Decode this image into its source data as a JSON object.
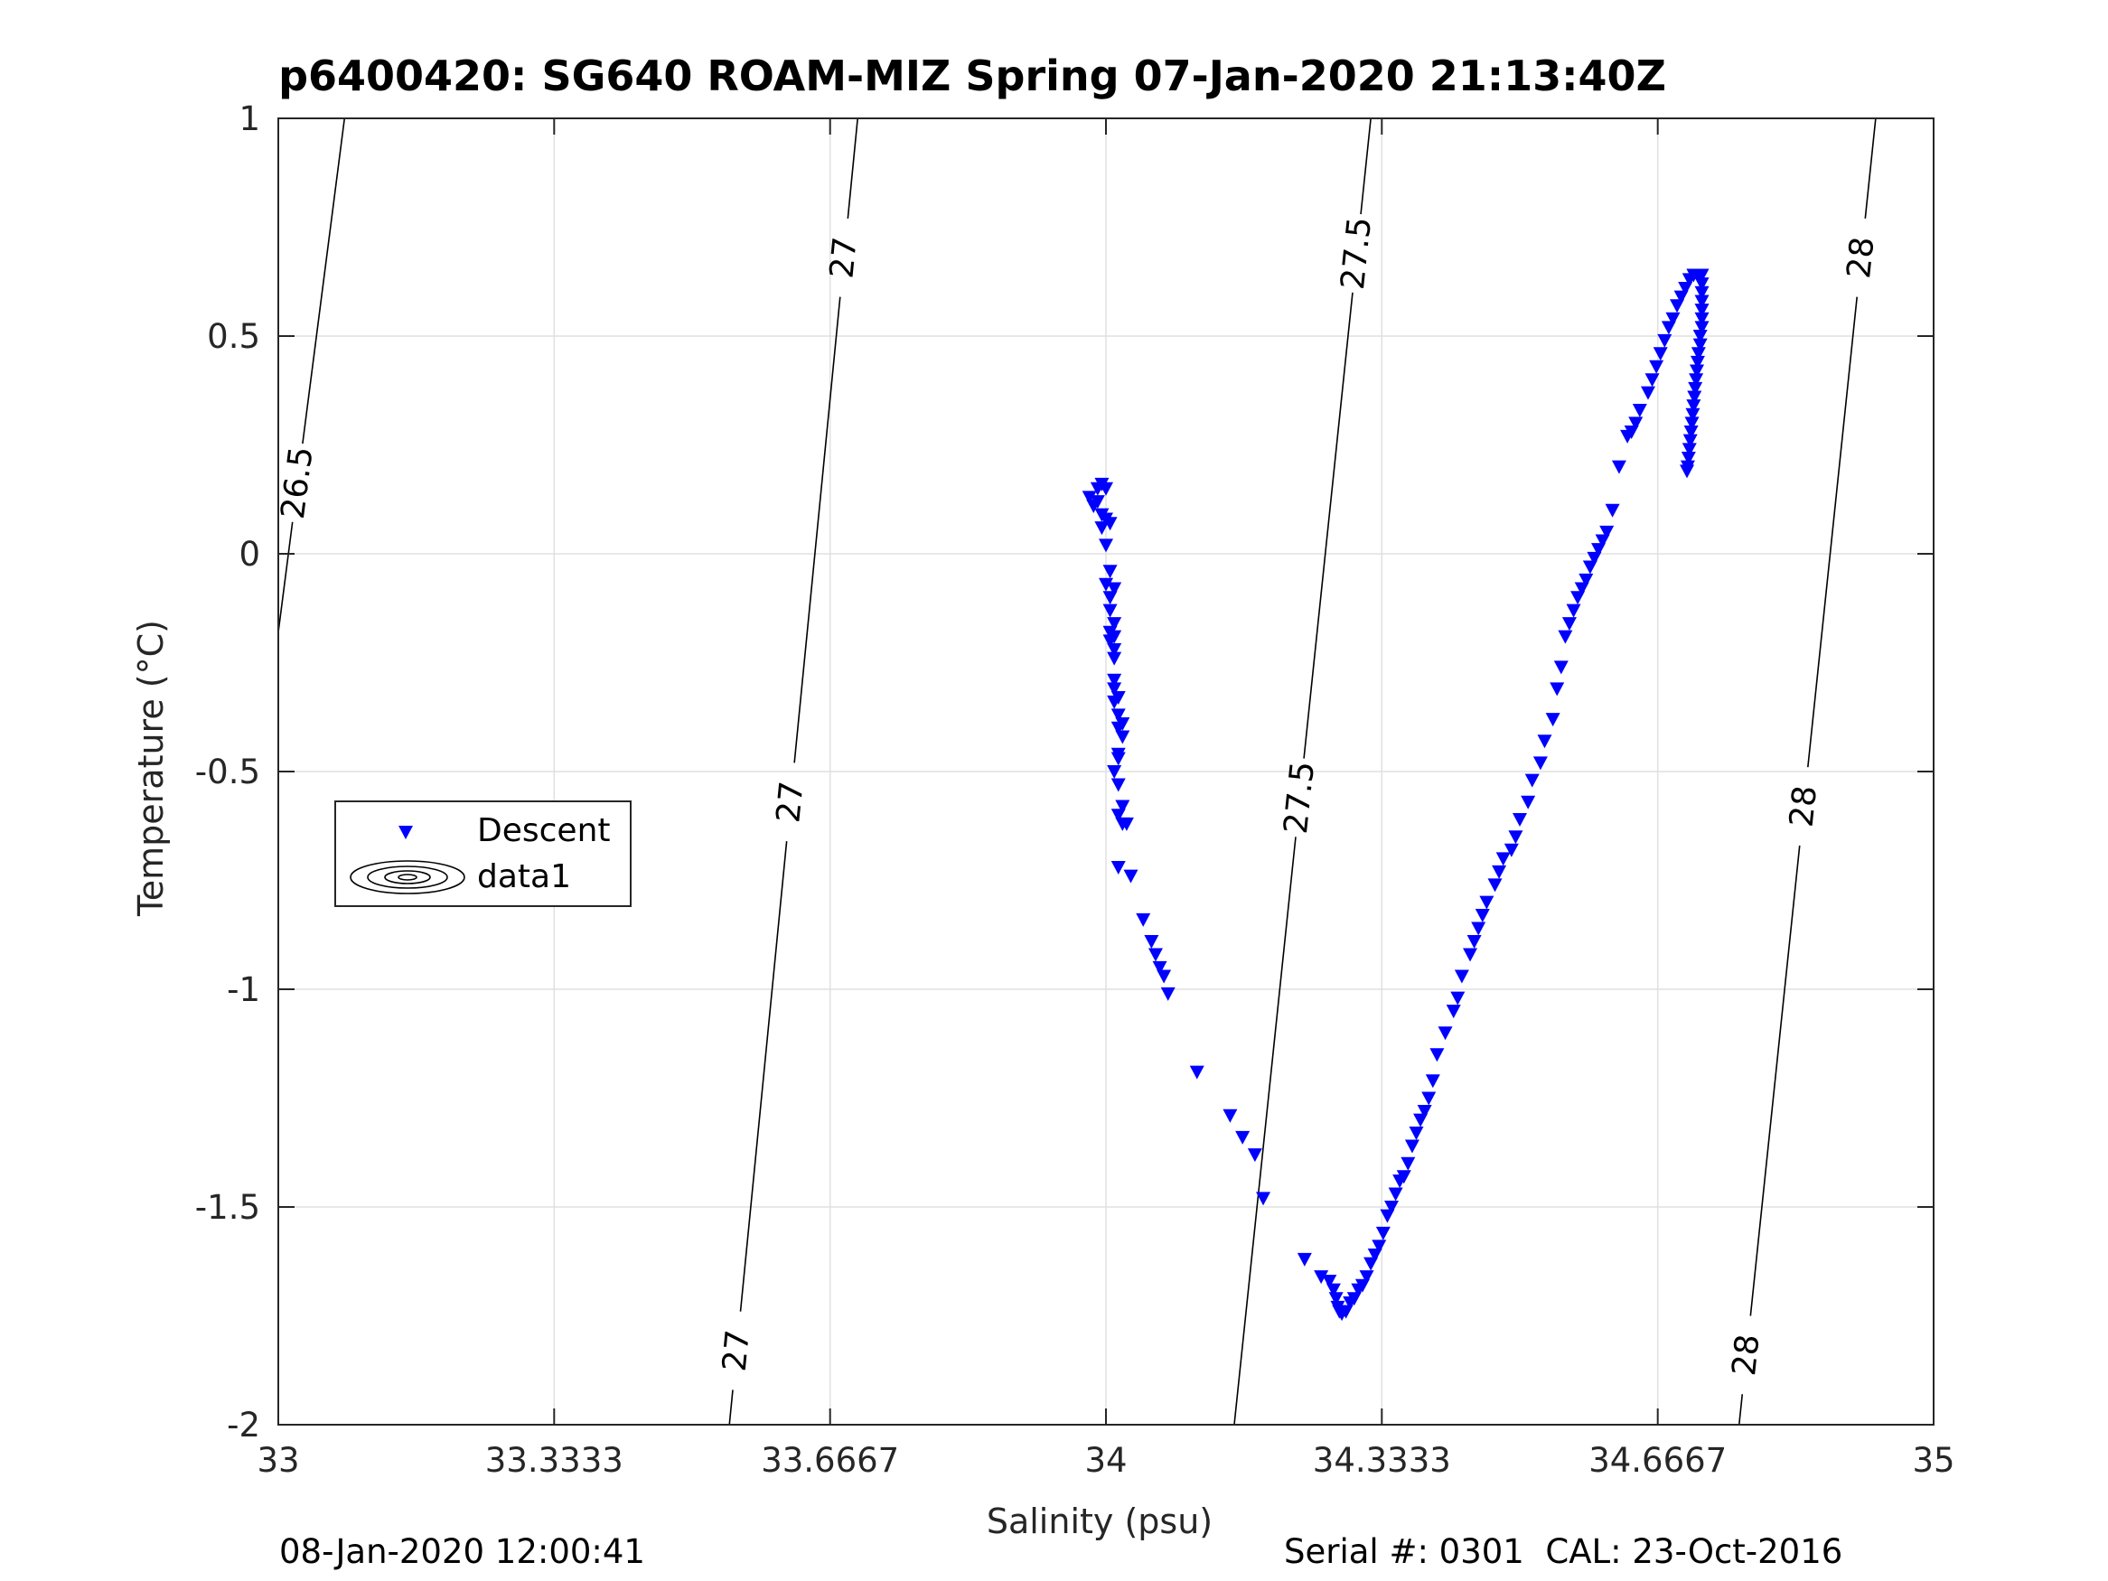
{
  "chart_data": {
    "type": "scatter",
    "title": "p6400420: SG640 ROAM-MIZ Spring 07-Jan-2020 21:13:40Z",
    "xlabel": "Salinity (psu)",
    "ylabel": "Temperature (°C)",
    "xlim": [
      33,
      35
    ],
    "ylim": [
      -2,
      1
    ],
    "x_ticks": [
      33,
      33.3333,
      33.6667,
      34,
      34.3333,
      34.6667,
      35
    ],
    "x_tick_labels": [
      "33",
      "33.3333",
      "33.6667",
      "34",
      "34.3333",
      "34.6667",
      "35"
    ],
    "y_ticks": [
      1,
      0.5,
      0,
      -0.5,
      -1,
      -1.5,
      -2
    ],
    "y_tick_labels": [
      "1",
      "0.5",
      "0",
      "-0.5",
      "-1",
      "-1.5",
      "-2"
    ],
    "grid": true,
    "legend": {
      "placement": "west",
      "entries": [
        "Descent",
        "data1"
      ]
    },
    "colors": {
      "descent": "#0000ff",
      "contour": "#000000",
      "grid": "#e0e0e0"
    },
    "series": [
      {
        "name": "Descent",
        "marker": "triangle-down",
        "points": [
          [
            33.98,
            0.13
          ],
          [
            33.985,
            0.11
          ],
          [
            33.99,
            0.12
          ],
          [
            33.995,
            0.09
          ],
          [
            33.99,
            0.15
          ],
          [
            33.995,
            0.16
          ],
          [
            34.0,
            0.15
          ],
          [
            34.0,
            0.08
          ],
          [
            34.005,
            0.07
          ],
          [
            33.995,
            0.06
          ],
          [
            34.0,
            0.02
          ],
          [
            34.005,
            -0.04
          ],
          [
            34.0,
            -0.07
          ],
          [
            34.01,
            -0.08
          ],
          [
            34.005,
            -0.1
          ],
          [
            34.005,
            -0.13
          ],
          [
            34.01,
            -0.16
          ],
          [
            34.005,
            -0.18
          ],
          [
            34.01,
            -0.19
          ],
          [
            34.005,
            -0.2
          ],
          [
            34.01,
            -0.22
          ],
          [
            34.01,
            -0.24
          ],
          [
            34.01,
            -0.29
          ],
          [
            34.01,
            -0.31
          ],
          [
            34.015,
            -0.33
          ],
          [
            34.01,
            -0.34
          ],
          [
            34.015,
            -0.37
          ],
          [
            34.02,
            -0.39
          ],
          [
            34.015,
            -0.4
          ],
          [
            34.02,
            -0.42
          ],
          [
            34.015,
            -0.46
          ],
          [
            34.015,
            -0.47
          ],
          [
            34.01,
            -0.5
          ],
          [
            34.015,
            -0.53
          ],
          [
            34.02,
            -0.58
          ],
          [
            34.015,
            -0.6
          ],
          [
            34.02,
            -0.62
          ],
          [
            34.025,
            -0.62
          ],
          [
            34.015,
            -0.72
          ],
          [
            34.03,
            -0.74
          ],
          [
            34.045,
            -0.84
          ],
          [
            34.055,
            -0.89
          ],
          [
            34.06,
            -0.92
          ],
          [
            34.065,
            -0.95
          ],
          [
            34.07,
            -0.97
          ],
          [
            34.075,
            -1.01
          ],
          [
            34.11,
            -1.19
          ],
          [
            34.15,
            -1.29
          ],
          [
            34.165,
            -1.34
          ],
          [
            34.18,
            -1.38
          ],
          [
            34.19,
            -1.48
          ],
          [
            34.24,
            -1.62
          ],
          [
            34.26,
            -1.66
          ],
          [
            34.27,
            -1.67
          ],
          [
            34.275,
            -1.69
          ],
          [
            34.278,
            -1.71
          ],
          [
            34.28,
            -1.73
          ],
          [
            34.282,
            -1.74
          ],
          [
            34.285,
            -1.745
          ],
          [
            34.29,
            -1.74
          ],
          [
            34.295,
            -1.72
          ],
          [
            34.3,
            -1.71
          ],
          [
            34.305,
            -1.69
          ],
          [
            34.31,
            -1.68
          ],
          [
            34.315,
            -1.66
          ],
          [
            34.32,
            -1.63
          ],
          [
            34.325,
            -1.61
          ],
          [
            34.33,
            -1.59
          ],
          [
            34.335,
            -1.56
          ],
          [
            34.34,
            -1.52
          ],
          [
            34.345,
            -1.5
          ],
          [
            34.35,
            -1.47
          ],
          [
            34.355,
            -1.44
          ],
          [
            34.36,
            -1.43
          ],
          [
            34.365,
            -1.4
          ],
          [
            34.37,
            -1.36
          ],
          [
            34.375,
            -1.33
          ],
          [
            34.38,
            -1.3
          ],
          [
            34.385,
            -1.28
          ],
          [
            34.39,
            -1.25
          ],
          [
            34.395,
            -1.21
          ],
          [
            34.4,
            -1.15
          ],
          [
            34.41,
            -1.1
          ],
          [
            34.42,
            -1.05
          ],
          [
            34.425,
            -1.02
          ],
          [
            34.43,
            -0.97
          ],
          [
            34.44,
            -0.92
          ],
          [
            34.445,
            -0.89
          ],
          [
            34.45,
            -0.86
          ],
          [
            34.455,
            -0.83
          ],
          [
            34.46,
            -0.8
          ],
          [
            34.47,
            -0.76
          ],
          [
            34.475,
            -0.73
          ],
          [
            34.48,
            -0.7
          ],
          [
            34.49,
            -0.68
          ],
          [
            34.495,
            -0.65
          ],
          [
            34.5,
            -0.61
          ],
          [
            34.51,
            -0.57
          ],
          [
            34.515,
            -0.52
          ],
          [
            34.525,
            -0.48
          ],
          [
            34.53,
            -0.43
          ],
          [
            34.54,
            -0.38
          ],
          [
            34.545,
            -0.31
          ],
          [
            34.55,
            -0.26
          ],
          [
            34.555,
            -0.19
          ],
          [
            34.56,
            -0.16
          ],
          [
            34.565,
            -0.13
          ],
          [
            34.57,
            -0.1
          ],
          [
            34.575,
            -0.08
          ],
          [
            34.58,
            -0.06
          ],
          [
            34.585,
            -0.03
          ],
          [
            34.59,
            -0.01
          ],
          [
            34.595,
            0.01
          ],
          [
            34.6,
            0.03
          ],
          [
            34.605,
            0.05
          ],
          [
            34.612,
            0.1
          ],
          [
            34.62,
            0.2
          ],
          [
            34.63,
            0.27
          ],
          [
            34.635,
            0.28
          ],
          [
            34.64,
            0.3
          ],
          [
            34.645,
            0.33
          ],
          [
            34.655,
            0.37
          ],
          [
            34.66,
            0.4
          ],
          [
            34.665,
            0.43
          ],
          [
            34.67,
            0.46
          ],
          [
            34.675,
            0.49
          ],
          [
            34.68,
            0.52
          ],
          [
            34.685,
            0.54
          ],
          [
            34.69,
            0.57
          ],
          [
            34.695,
            0.59
          ],
          [
            34.7,
            0.61
          ],
          [
            34.705,
            0.63
          ],
          [
            34.71,
            0.64
          ],
          [
            34.715,
            0.64
          ],
          [
            34.72,
            0.64
          ],
          [
            34.72,
            0.62
          ],
          [
            34.72,
            0.6
          ],
          [
            34.72,
            0.58
          ],
          [
            34.72,
            0.56
          ],
          [
            34.72,
            0.54
          ],
          [
            34.72,
            0.52
          ],
          [
            34.718,
            0.5
          ],
          [
            34.718,
            0.48
          ],
          [
            34.716,
            0.46
          ],
          [
            34.715,
            0.44
          ],
          [
            34.714,
            0.42
          ],
          [
            34.713,
            0.4
          ],
          [
            34.712,
            0.38
          ],
          [
            34.711,
            0.36
          ],
          [
            34.71,
            0.34
          ],
          [
            34.709,
            0.32
          ],
          [
            34.708,
            0.3
          ],
          [
            34.707,
            0.28
          ],
          [
            34.706,
            0.26
          ],
          [
            34.705,
            0.24
          ],
          [
            34.704,
            0.22
          ],
          [
            34.703,
            0.2
          ],
          [
            34.702,
            0.19
          ]
        ]
      }
    ],
    "contours": [
      {
        "label": "26.5",
        "line": [
          [
            33.0,
            -0.18
          ],
          [
            33.08,
            1.0
          ]
        ],
        "labels_at": [
          0.163
        ]
      },
      {
        "label": "27",
        "line": [
          [
            33.545,
            -2.0
          ],
          [
            33.7,
            1.0
          ]
        ],
        "labels_at": [
          -1.83,
          -0.57,
          0.68
        ]
      },
      {
        "label": "27.5",
        "line": [
          [
            34.155,
            -2.0
          ],
          [
            34.32,
            1.0
          ]
        ],
        "labels_at": [
          -0.56,
          0.69
        ]
      },
      {
        "label": "28",
        "line": [
          [
            34.765,
            -2.0
          ],
          [
            34.93,
            1.0
          ]
        ],
        "labels_at": [
          -1.84,
          -0.58,
          0.68
        ]
      }
    ]
  },
  "footer": {
    "left": "08-Jan-2020 12:00:41",
    "right": "Serial #: 0301  CAL: 23-Oct-2016"
  }
}
